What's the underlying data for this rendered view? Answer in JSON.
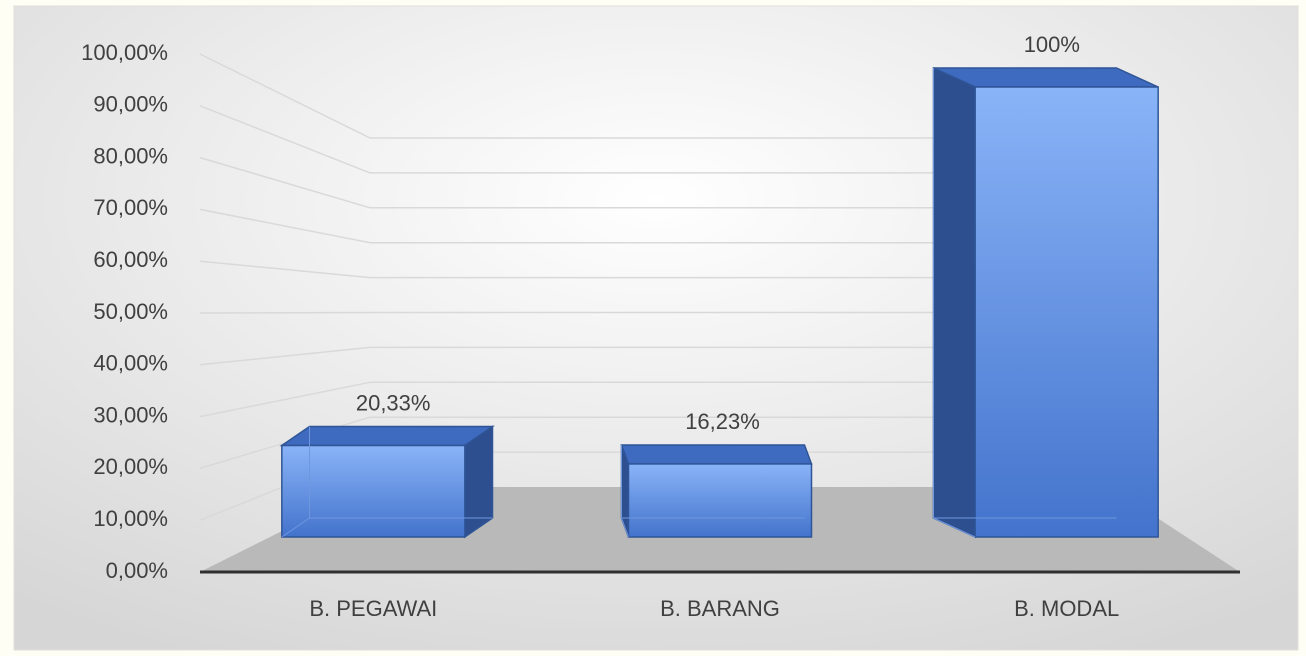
{
  "chart_data": {
    "type": "bar3d",
    "categories": [
      "B. PEGAWAI",
      "B. BARANG",
      "B. MODAL"
    ],
    "values": [
      20.33,
      16.23,
      100
    ],
    "value_labels": [
      "20,33%",
      "16,23%",
      "100%"
    ],
    "color": "#4a7fd4",
    "ylim": [
      0,
      100
    ],
    "yticks": [
      {
        "value": 0,
        "label": "0,00%"
      },
      {
        "value": 10,
        "label": "10,00%"
      },
      {
        "value": 20,
        "label": "20,00%"
      },
      {
        "value": 30,
        "label": "30,00%"
      },
      {
        "value": 40,
        "label": "40,00%"
      },
      {
        "value": 50,
        "label": "50,00%"
      },
      {
        "value": 60,
        "label": "60,00%"
      },
      {
        "value": 70,
        "label": "70,00%"
      },
      {
        "value": 80,
        "label": "80,00%"
      },
      {
        "value": 90,
        "label": "90,00%"
      },
      {
        "value": 100,
        "label": "100,00%"
      }
    ],
    "grid": true
  }
}
